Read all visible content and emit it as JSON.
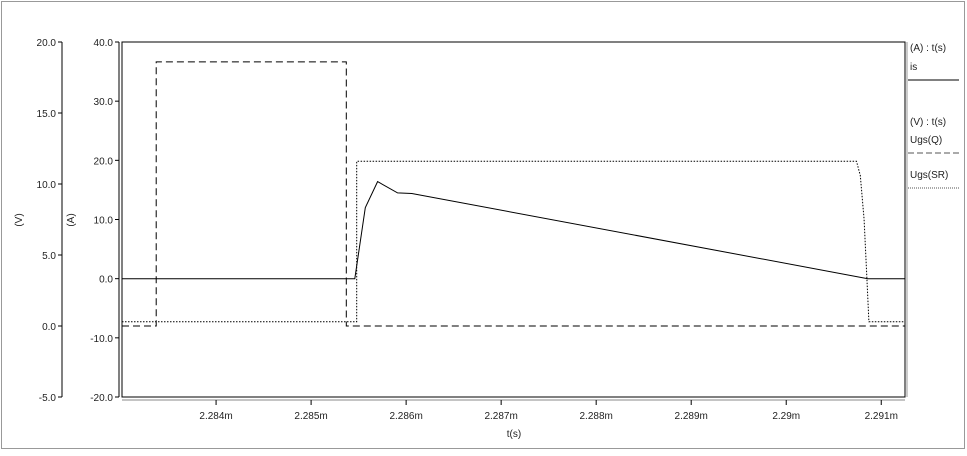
{
  "chart_data": {
    "type": "line",
    "title": "",
    "xlabel": "t(s)",
    "xlim": [
      0.00228301,
      0.00229125
    ],
    "xticks": [
      0.002284,
      0.002285,
      0.002286,
      0.002287,
      0.002288,
      0.002289,
      0.00229,
      0.002291
    ],
    "xtick_labels": [
      "2.284m",
      "2.285m",
      "2.286m",
      "2.287m",
      "2.288m",
      "2.289m",
      "2.29m",
      "2.291m"
    ],
    "y_axes": [
      {
        "label": "(V)",
        "ylim": [
          -5,
          20
        ],
        "ticks": [
          "20.0",
          "15.0",
          "10.0",
          "5.0",
          "0.0",
          "-5.0"
        ],
        "tick_values": [
          20,
          15,
          10,
          5,
          0,
          -5
        ]
      },
      {
        "label": "(A)",
        "ylim": [
          -20,
          40
        ],
        "ticks": [
          "40.0",
          "30.0",
          "20.0",
          "10.0",
          "0.0",
          "-10.0",
          "-20.0"
        ],
        "tick_values": [
          40,
          30,
          20,
          10,
          0,
          -10,
          -20
        ]
      }
    ],
    "grid": false,
    "legend_position": "right",
    "legend": [
      {
        "header": "(A) : t(s)"
      },
      {
        "name": "is",
        "style": "solid"
      },
      {
        "header": "(V) : t(s)"
      },
      {
        "name": "Ugs(Q)",
        "style": "dashed"
      },
      {
        "name": "Ugs(SR)",
        "style": "dotted"
      }
    ],
    "series": [
      {
        "name": "is",
        "axis": "(A)",
        "style": "solid",
        "color": "#000000",
        "x": [
          0.00228301,
          0.00228546,
          0.00228557,
          0.0022857,
          0.00228591,
          0.00228606,
          0.00229086,
          0.00229125
        ],
        "y": [
          0,
          0,
          12.0,
          16.4,
          14.5,
          14.4,
          0,
          0
        ]
      },
      {
        "name": "Ugs(Q)",
        "axis": "(V)",
        "style": "dashed",
        "color": "#000000",
        "x": [
          0.00228301,
          0.00228337,
          0.00228337,
          0.00228537,
          0.00228537,
          0.00229125
        ],
        "y": [
          0,
          0,
          18.6,
          18.6,
          0,
          0
        ]
      },
      {
        "name": "Ugs(SR)",
        "axis": "(V)",
        "style": "dotted",
        "color": "#000000",
        "x": [
          0.00228301,
          0.00228548,
          0.00228548,
          0.00229074,
          0.00229078,
          0.00229082,
          0.00229085,
          0.00229087,
          0.00229125
        ],
        "y": [
          0.3,
          0.3,
          11.6,
          11.6,
          10.6,
          7.5,
          3.2,
          0.3,
          0.3
        ]
      }
    ]
  }
}
